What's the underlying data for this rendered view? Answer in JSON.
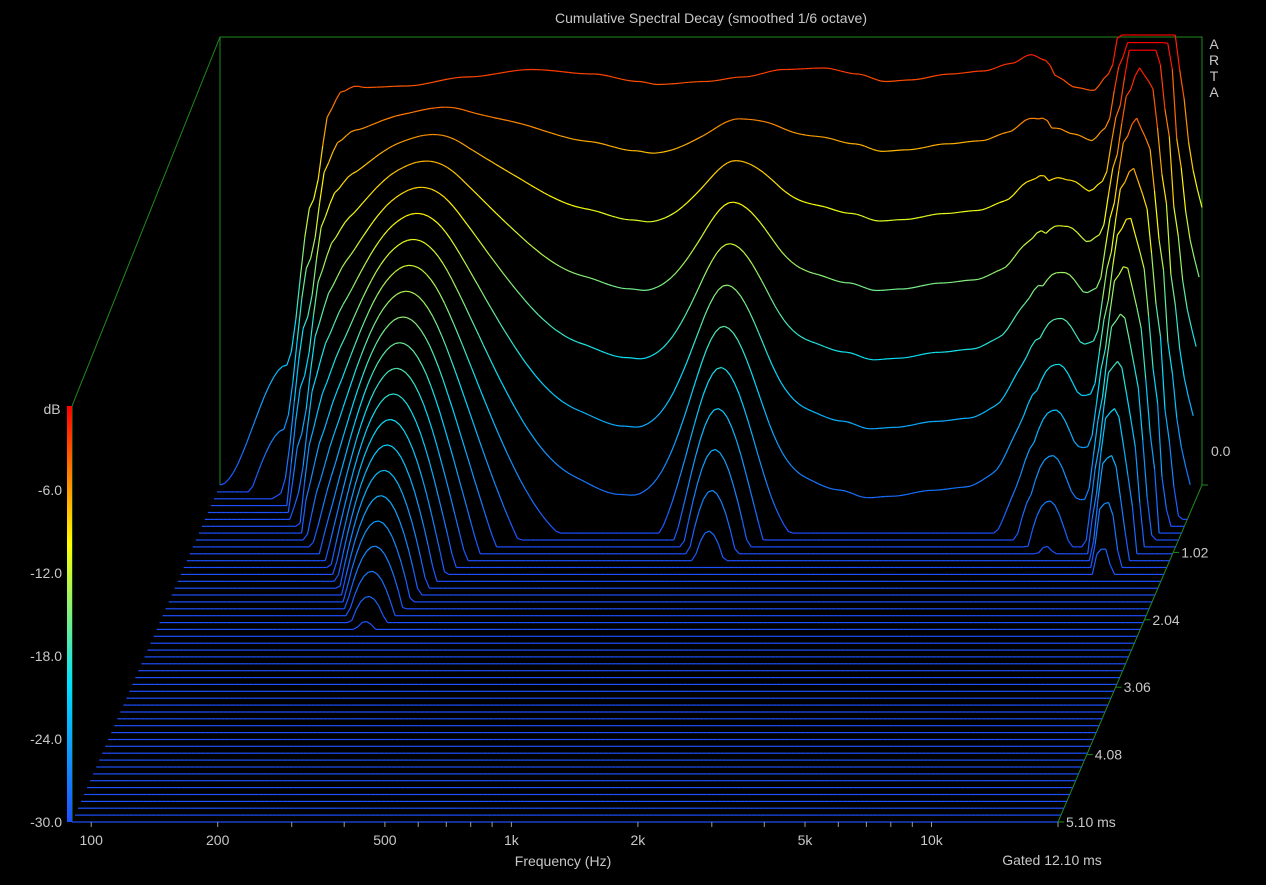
{
  "chart_data": {
    "type": "waterfall",
    "title": "Cumulative Spectral Decay (smoothed 1/6 octave)",
    "xlabel": "Frequency (Hz)",
    "x_scale": "log",
    "x_range": [
      90,
      20000
    ],
    "x_tick_labels": [
      {
        "label": "100",
        "value": 100
      },
      {
        "label": "200",
        "value": 200
      },
      {
        "label": "500",
        "value": 500
      },
      {
        "label": "1k",
        "value": 1000
      },
      {
        "label": "2k",
        "value": 2000
      },
      {
        "label": "5k",
        "value": 5000
      },
      {
        "label": "10k",
        "value": 10000
      }
    ],
    "z_label": "dB",
    "z_range": [
      -30,
      0
    ],
    "z_tick_labels": [
      "0.0",
      "-6.0",
      "-12.0",
      "-18.0",
      "-24.0",
      "-30.0"
    ],
    "time_unit": "ms",
    "time_range": [
      0,
      5.1
    ],
    "time_tick_labels": [
      "0.0",
      "1.02",
      "2.04",
      "3.06",
      "4.08",
      "5.10 ms"
    ],
    "slice_count": 50,
    "gating_note": "Gated 12.10 ms",
    "brand": "ARTA",
    "colormap": [
      "#1e50ff",
      "#00e0ff",
      "#ffff00",
      "#ff0000"
    ],
    "first_slice_response": {
      "freq_hz": [
        90,
        130,
        150,
        165,
        175,
        190,
        200,
        250,
        350,
        500,
        700,
        900,
        1000,
        1300,
        1600,
        2000,
        2500,
        3000,
        3500,
        4000,
        5000,
        6000,
        7000,
        7800,
        8500,
        9000,
        10000,
        11000,
        12000,
        13000,
        14000,
        15000,
        16000,
        17000,
        18000,
        19000,
        20000
      ],
      "level_db": [
        -30,
        -22,
        -11,
        -5,
        -3.8,
        -3.4,
        -3.5,
        -3.4,
        -2.8,
        -2.3,
        -2.6,
        -3.1,
        -3.3,
        -3.1,
        -2.8,
        -2.3,
        -2.2,
        -2.6,
        -3.1,
        -3.0,
        -2.6,
        -2.4,
        -1.9,
        -1.3,
        -1.7,
        -2.8,
        -3.5,
        -3.7,
        -2.6,
        1.5,
        5.5,
        8.0,
        8.5,
        3.5,
        -4.0,
        -9.0,
        -11.5
      ]
    }
  }
}
